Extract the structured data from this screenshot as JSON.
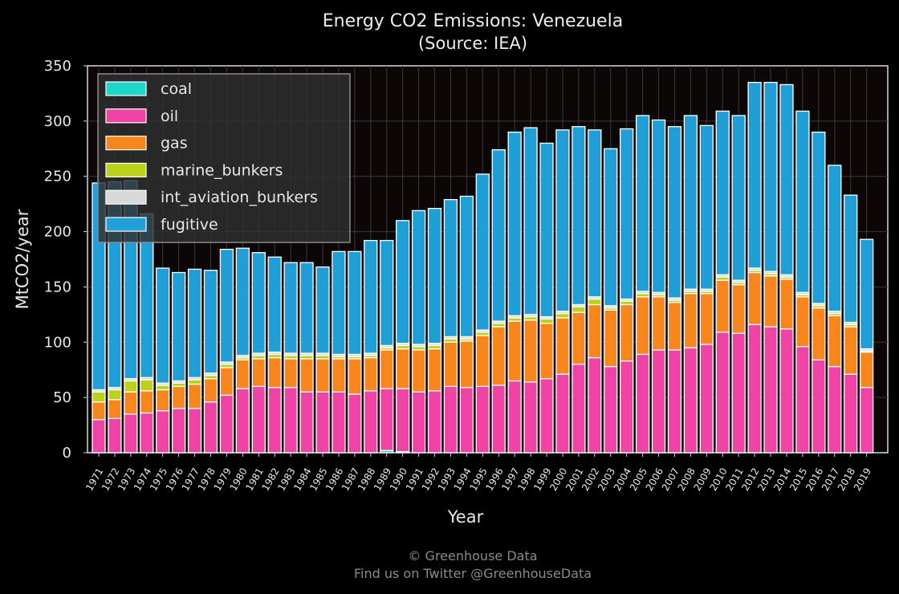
{
  "footer": {
    "line1": "© Greenhouse Data",
    "line2": "Find us on Twitter @GreenhouseData"
  },
  "colors": {
    "background": "#000000",
    "plot_background": "#0d0606",
    "grid": "#3a3a3a",
    "coal": "#1fd6cc",
    "oil": "#f043a6",
    "gas": "#f7861c",
    "marine_bunkers": "#bcd21a",
    "int_aviation_bunkers": "#d8d8d8",
    "fugitive": "#1f9fd6"
  },
  "chart_data": {
    "type": "bar",
    "stacked": true,
    "title": "Energy CO2 Emissions: Venezuela",
    "subtitle": "(Source: IEA)",
    "xlabel": "Year",
    "ylabel": "MtCO2/year",
    "ylim": [
      0,
      350
    ],
    "yticks": [
      0,
      50,
      100,
      150,
      200,
      250,
      300,
      350
    ],
    "grid": true,
    "legend_position": "top-left",
    "categories": [
      "1971",
      "1972",
      "1973",
      "1974",
      "1975",
      "1976",
      "1977",
      "1978",
      "1979",
      "1980",
      "1981",
      "1982",
      "1983",
      "1984",
      "1985",
      "1986",
      "1987",
      "1988",
      "1989",
      "1990",
      "1991",
      "1992",
      "1993",
      "1994",
      "1995",
      "1996",
      "1997",
      "1998",
      "1999",
      "2000",
      "2001",
      "2002",
      "2003",
      "2004",
      "2005",
      "2006",
      "2007",
      "2008",
      "2009",
      "2010",
      "2011",
      "2012",
      "2013",
      "2014",
      "2015",
      "2016",
      "2017",
      "2018",
      "2019"
    ],
    "series": [
      {
        "name": "coal",
        "color": "#1fd6cc",
        "values": [
          0,
          0,
          0,
          0,
          0,
          0,
          0,
          0,
          0,
          0,
          0,
          0,
          0,
          0,
          0,
          0,
          0,
          0,
          2,
          1,
          0,
          0,
          0,
          0,
          0,
          0,
          0,
          0,
          0,
          0,
          0,
          0,
          0,
          0,
          0,
          0,
          0,
          0,
          0,
          0,
          0,
          0,
          0,
          0,
          0,
          0,
          0,
          0,
          0
        ]
      },
      {
        "name": "oil",
        "color": "#f043a6",
        "values": [
          30,
          31,
          35,
          36,
          38,
          40,
          40,
          46,
          52,
          58,
          60,
          59,
          59,
          55,
          55,
          55,
          53,
          56,
          56,
          57,
          55,
          56,
          60,
          59,
          60,
          61,
          65,
          64,
          67,
          71,
          80,
          86,
          78,
          83,
          89,
          93,
          93,
          95,
          98,
          109,
          108,
          116,
          114,
          112,
          96,
          84,
          78,
          71,
          59
        ]
      },
      {
        "name": "gas",
        "color": "#f7861c",
        "values": [
          16,
          17,
          20,
          20,
          19,
          20,
          22,
          21,
          25,
          26,
          25,
          27,
          26,
          30,
          30,
          30,
          32,
          30,
          35,
          36,
          38,
          38,
          40,
          42,
          46,
          53,
          54,
          56,
          50,
          51,
          47,
          48,
          51,
          51,
          52,
          48,
          43,
          49,
          46,
          47,
          44,
          47,
          46,
          45,
          45,
          47,
          46,
          43,
          32
        ]
      },
      {
        "name": "marine_bunkers",
        "color": "#bcd21a",
        "values": [
          9,
          9,
          10,
          10,
          4,
          3,
          4,
          3,
          3,
          2,
          3,
          3,
          3,
          3,
          3,
          2,
          2,
          2,
          2,
          3,
          3,
          3,
          3,
          2,
          3,
          3,
          3,
          3,
          4,
          4,
          5,
          5,
          2,
          3,
          3,
          2,
          2,
          2,
          2,
          3,
          2,
          2,
          2,
          2,
          2,
          2,
          2,
          2,
          1
        ]
      },
      {
        "name": "int_aviation_bunkers",
        "color": "#d8d8d8",
        "values": [
          2,
          2,
          2,
          2,
          2,
          2,
          2,
          2,
          2,
          2,
          2,
          2,
          2,
          2,
          2,
          2,
          2,
          2,
          2,
          2,
          2,
          2,
          2,
          2,
          2,
          2,
          2,
          2,
          2,
          2,
          2,
          2,
          2,
          2,
          2,
          2,
          2,
          2,
          2,
          2,
          2,
          2,
          2,
          2,
          2,
          2,
          2,
          2,
          2
        ]
      },
      {
        "name": "fugitive",
        "color": "#1f9fd6",
        "values": [
          187,
          186,
          179,
          148,
          104,
          98,
          98,
          93,
          102,
          97,
          91,
          86,
          82,
          82,
          78,
          93,
          93,
          102,
          95,
          111,
          121,
          122,
          124,
          127,
          141,
          155,
          166,
          169,
          157,
          164,
          161,
          151,
          142,
          154,
          159,
          156,
          155,
          157,
          148,
          148,
          149,
          168,
          171,
          172,
          164,
          155,
          132,
          115,
          99
        ]
      }
    ]
  }
}
